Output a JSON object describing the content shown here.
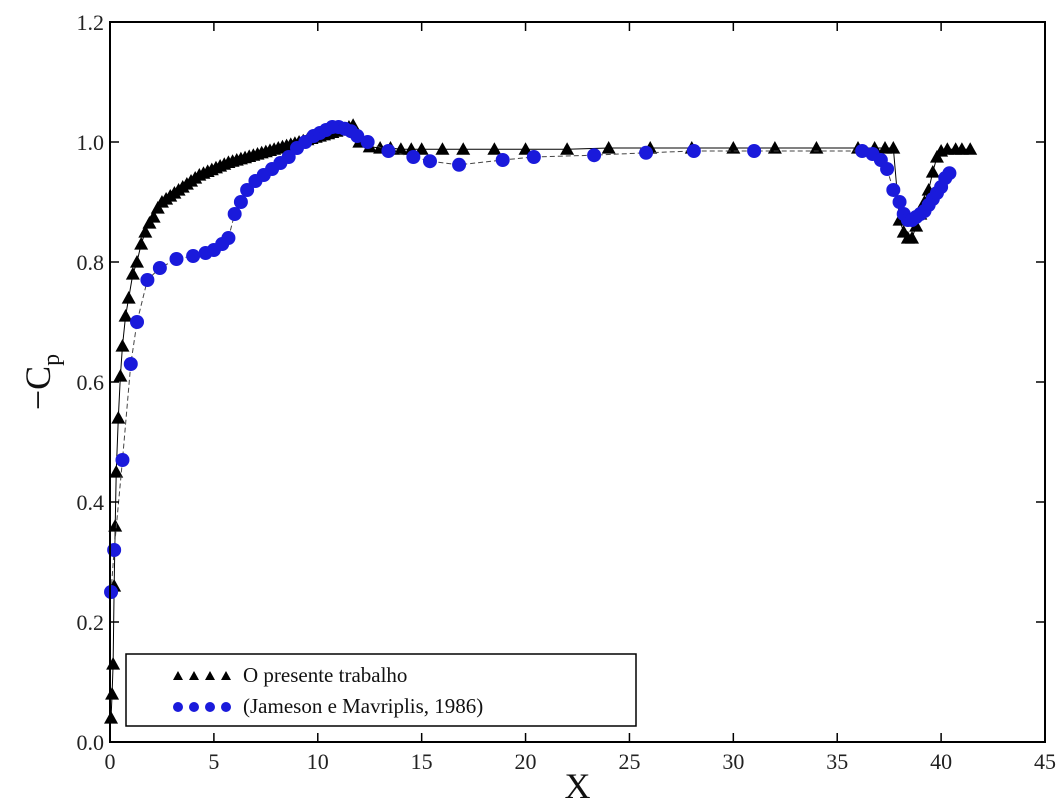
{
  "chart_data": {
    "type": "scatter",
    "xlabel": "X",
    "ylabel_main": "C",
    "ylabel_prefix": "−",
    "ylabel_sub": "p",
    "xlim": [
      0,
      45
    ],
    "ylim": [
      0.0,
      1.2
    ],
    "xticks": [
      0,
      5,
      10,
      15,
      20,
      25,
      30,
      35,
      40,
      45
    ],
    "xtick_labels": [
      "0",
      "5",
      "10",
      "15",
      "20",
      "25",
      "30",
      "35",
      "40",
      "45"
    ],
    "yticks": [
      0.0,
      0.2,
      0.4,
      0.6,
      0.8,
      1.0,
      1.2
    ],
    "ytick_labels": [
      "0.0",
      "0.2",
      "0.4",
      "0.6",
      "0.8",
      "1.0",
      "1.2"
    ],
    "grid": false,
    "legend_position": "lower-left",
    "series": [
      {
        "name": "O presente trabalho",
        "marker": "triangle",
        "color": "#000000",
        "line": true,
        "x": [
          0.05,
          0.1,
          0.15,
          0.2,
          0.25,
          0.3,
          0.4,
          0.5,
          0.6,
          0.75,
          0.9,
          1.1,
          1.3,
          1.5,
          1.7,
          1.9,
          2.1,
          2.3,
          2.5,
          2.7,
          2.9,
          3.1,
          3.3,
          3.5,
          3.7,
          3.9,
          4.1,
          4.3,
          4.5,
          4.7,
          4.9,
          5.1,
          5.3,
          5.5,
          5.7,
          5.9,
          6.1,
          6.3,
          6.5,
          6.7,
          6.9,
          7.1,
          7.3,
          7.5,
          7.7,
          7.9,
          8.1,
          8.3,
          8.5,
          8.7,
          8.9,
          9.1,
          9.3,
          9.5,
          9.7,
          9.9,
          10.1,
          10.3,
          10.5,
          10.7,
          10.9,
          11.1,
          11.3,
          11.5,
          11.7,
          12.0,
          12.5,
          13.0,
          13.5,
          14.0,
          14.5,
          15.0,
          16.0,
          17.0,
          18.5,
          20.0,
          22.0,
          24.0,
          26.0,
          28.0,
          30.0,
          32.0,
          34.0,
          36.0,
          36.8,
          37.3,
          37.7,
          38.0,
          38.2,
          38.4,
          38.6,
          38.8,
          39.0,
          39.2,
          39.4,
          39.6,
          39.8,
          40.0,
          40.3,
          40.7,
          41.0,
          41.4
        ],
        "y": [
          0.04,
          0.08,
          0.13,
          0.26,
          0.36,
          0.45,
          0.54,
          0.61,
          0.66,
          0.71,
          0.74,
          0.78,
          0.8,
          0.83,
          0.85,
          0.865,
          0.875,
          0.89,
          0.9,
          0.905,
          0.91,
          0.915,
          0.92,
          0.925,
          0.93,
          0.935,
          0.94,
          0.945,
          0.948,
          0.951,
          0.954,
          0.957,
          0.96,
          0.963,
          0.966,
          0.968,
          0.97,
          0.972,
          0.974,
          0.976,
          0.978,
          0.98,
          0.982,
          0.984,
          0.986,
          0.988,
          0.99,
          0.992,
          0.994,
          0.996,
          0.998,
          1.0,
          1.002,
          1.004,
          1.006,
          1.008,
          1.01,
          1.012,
          1.014,
          1.016,
          1.018,
          1.02,
          1.022,
          1.025,
          1.028,
          1.0,
          0.992,
          0.99,
          0.99,
          0.988,
          0.988,
          0.988,
          0.988,
          0.988,
          0.988,
          0.988,
          0.988,
          0.99,
          0.99,
          0.99,
          0.99,
          0.99,
          0.99,
          0.99,
          0.99,
          0.99,
          0.99,
          0.87,
          0.85,
          0.84,
          0.84,
          0.86,
          0.88,
          0.9,
          0.92,
          0.95,
          0.975,
          0.985,
          0.988,
          0.988,
          0.988,
          0.988
        ]
      },
      {
        "name": "(Jameson e Mavriplis, 1986)",
        "marker": "circle",
        "color": "#1a1adb",
        "line": true,
        "x": [
          0.05,
          0.2,
          0.6,
          1.0,
          1.3,
          1.8,
          2.4,
          3.2,
          4.0,
          4.6,
          5.0,
          5.4,
          5.7,
          6.0,
          6.3,
          6.6,
          7.0,
          7.4,
          7.8,
          8.2,
          8.6,
          9.0,
          9.4,
          9.8,
          10.1,
          10.4,
          10.7,
          11.0,
          11.3,
          11.6,
          11.9,
          12.4,
          13.4,
          14.6,
          15.4,
          16.8,
          18.9,
          20.4,
          23.3,
          25.8,
          28.1,
          31.0,
          36.2,
          36.7,
          37.1,
          37.4,
          37.7,
          38.0,
          38.2,
          38.4,
          38.6,
          38.8,
          39.0,
          39.2,
          39.4,
          39.6,
          39.8,
          40.0,
          40.2,
          40.4
        ],
        "y": [
          0.25,
          0.32,
          0.47,
          0.63,
          0.7,
          0.77,
          0.79,
          0.805,
          0.81,
          0.815,
          0.82,
          0.83,
          0.84,
          0.88,
          0.9,
          0.92,
          0.935,
          0.945,
          0.955,
          0.965,
          0.975,
          0.99,
          1.0,
          1.01,
          1.015,
          1.02,
          1.025,
          1.025,
          1.022,
          1.018,
          1.01,
          1.0,
          0.985,
          0.975,
          0.968,
          0.962,
          0.97,
          0.975,
          0.978,
          0.982,
          0.985,
          0.985,
          0.985,
          0.98,
          0.97,
          0.955,
          0.92,
          0.9,
          0.88,
          0.87,
          0.87,
          0.875,
          0.88,
          0.885,
          0.895,
          0.905,
          0.915,
          0.925,
          0.94,
          0.948
        ]
      }
    ]
  }
}
